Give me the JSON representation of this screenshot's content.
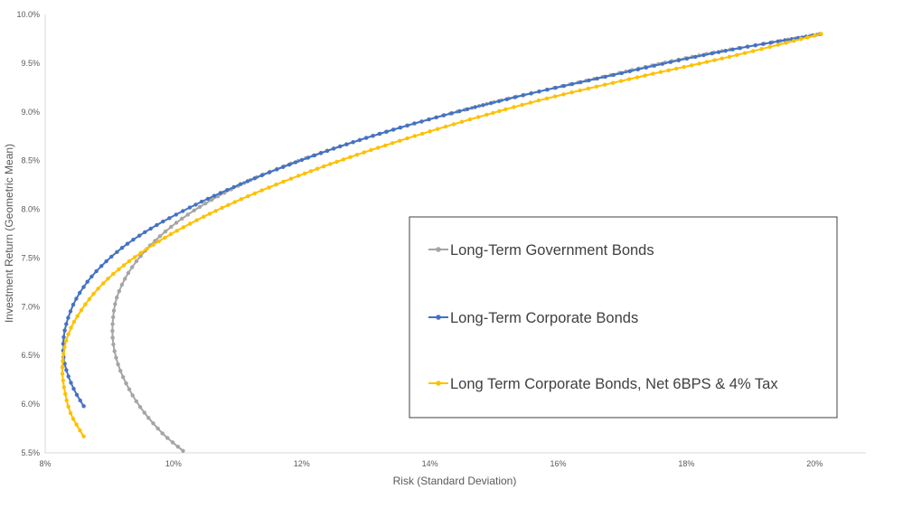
{
  "chart_data": {
    "type": "scatter",
    "xlabel": "Risk (Standard Deviation)",
    "ylabel": "Investment Return (Geometric Mean)",
    "xlim": [
      8,
      20.8
    ],
    "ylim": [
      5.5,
      10.0
    ],
    "x_ticks": [
      "8%",
      "10%",
      "12%",
      "14%",
      "16%",
      "18%",
      "20%"
    ],
    "y_ticks": [
      "5.5%",
      "6.0%",
      "6.5%",
      "7.0%",
      "7.5%",
      "8.0%",
      "8.5%",
      "9.0%",
      "9.5%",
      "10.0%"
    ],
    "x_tick_values": [
      8,
      10,
      12,
      14,
      16,
      18,
      20
    ],
    "y_tick_values": [
      5.5,
      6.0,
      6.5,
      7.0,
      7.5,
      8.0,
      8.5,
      9.0,
      9.5,
      10.0
    ],
    "gridlines": false,
    "legend_position": "right-center, boxed",
    "series": [
      {
        "name": "Long-Term Government Bonds",
        "color": "#A5A5A5",
        "points": [
          [
            10.15,
            5.52
          ],
          [
            9.8,
            5.72
          ],
          [
            9.45,
            6.0
          ],
          [
            9.2,
            6.3
          ],
          [
            9.08,
            6.55
          ],
          [
            9.05,
            6.8
          ],
          [
            9.12,
            7.1
          ],
          [
            9.35,
            7.4
          ],
          [
            9.75,
            7.7
          ],
          [
            10.35,
            8.0
          ],
          [
            11.2,
            8.3
          ],
          [
            12.3,
            8.58
          ],
          [
            13.6,
            8.85
          ],
          [
            15.0,
            9.1
          ],
          [
            16.5,
            9.33
          ],
          [
            18.2,
            9.58
          ],
          [
            20.1,
            9.8
          ]
        ]
      },
      {
        "name": "Long-Term Corporate Bonds",
        "color": "#4472C4",
        "points": [
          [
            8.6,
            5.98
          ],
          [
            8.45,
            6.15
          ],
          [
            8.33,
            6.35
          ],
          [
            8.28,
            6.55
          ],
          [
            8.32,
            6.8
          ],
          [
            8.5,
            7.1
          ],
          [
            8.85,
            7.4
          ],
          [
            9.4,
            7.7
          ],
          [
            10.2,
            8.0
          ],
          [
            11.2,
            8.3
          ],
          [
            12.4,
            8.6
          ],
          [
            13.7,
            8.87
          ],
          [
            15.2,
            9.13
          ],
          [
            16.8,
            9.37
          ],
          [
            18.4,
            9.6
          ],
          [
            20.1,
            9.8
          ]
        ]
      },
      {
        "name": "Long Term Corporate Bonds, Net 6BPS & 4% Tax",
        "color": "#FFC000",
        "points": [
          [
            8.6,
            5.67
          ],
          [
            8.4,
            5.9
          ],
          [
            8.3,
            6.15
          ],
          [
            8.27,
            6.4
          ],
          [
            8.35,
            6.7
          ],
          [
            8.6,
            7.0
          ],
          [
            9.0,
            7.3
          ],
          [
            9.6,
            7.6
          ],
          [
            10.4,
            7.9
          ],
          [
            11.4,
            8.2
          ],
          [
            12.6,
            8.5
          ],
          [
            14.0,
            8.8
          ],
          [
            15.6,
            9.1
          ],
          [
            17.2,
            9.35
          ],
          [
            18.7,
            9.57
          ],
          [
            20.1,
            9.8
          ]
        ]
      }
    ]
  }
}
